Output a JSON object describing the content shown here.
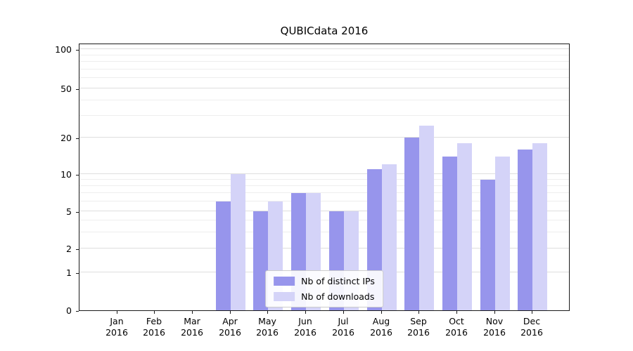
{
  "title": "QUBICdata 2016",
  "chart_data": {
    "type": "bar",
    "title": "QUBICdata 2016",
    "categories": [
      "Jan",
      "Feb",
      "Mar",
      "Apr",
      "May",
      "Jun",
      "Jul",
      "Aug",
      "Sep",
      "Oct",
      "Nov",
      "Dec"
    ],
    "category_year": "2016",
    "series": [
      {
        "name": "Nb of distinct IPs",
        "values": [
          0,
          0,
          0,
          6,
          5,
          7,
          5,
          11,
          20,
          14,
          9,
          16
        ]
      },
      {
        "name": "Nb of downloads",
        "values": [
          0,
          0,
          0,
          10,
          6,
          7,
          5,
          12,
          25,
          18,
          14,
          18
        ]
      }
    ],
    "yscale": "symlog",
    "y_major_ticks": [
      0,
      1,
      2,
      5,
      10,
      20,
      50,
      100
    ],
    "y_minor_ticks": [
      3,
      4,
      6,
      7,
      8,
      9,
      30,
      40,
      60,
      70,
      80,
      90
    ],
    "ylim": [
      0,
      110
    ],
    "grid": true,
    "legend_position": "lower center"
  },
  "legend": {
    "items": [
      {
        "label": "Nb of distinct IPs"
      },
      {
        "label": "Nb of downloads"
      }
    ]
  },
  "colors": {
    "series1": "#9795ec",
    "series2": "#d4d3f8",
    "grid_major": "#dedede",
    "grid_minor": "#eeeeee",
    "spine": "#1a1a1a",
    "text": "#000000",
    "legend_border": "#cccccc"
  }
}
